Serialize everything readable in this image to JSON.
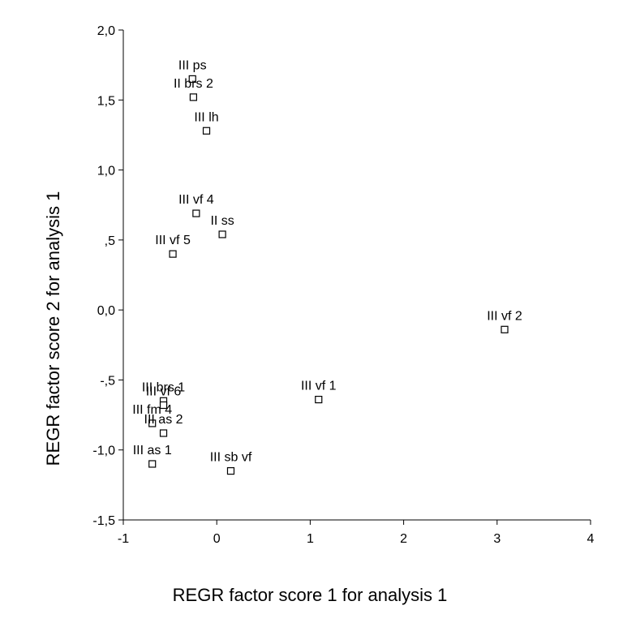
{
  "chart_data": {
    "type": "scatter",
    "title": "",
    "xlabel": "REGR factor score   1 for analysis    1",
    "ylabel": "REGR factor score   2 for analysis    1",
    "xlim": [
      -1,
      4
    ],
    "ylim": [
      -1.5,
      2.0
    ],
    "xticks": [
      -1,
      0,
      1,
      2,
      3,
      4
    ],
    "xtick_labels": [
      "-1",
      "0",
      "1",
      "2",
      "3",
      "4"
    ],
    "yticks": [
      -1.5,
      -1.0,
      -0.5,
      0.0,
      0.5,
      1.0,
      1.5,
      2.0
    ],
    "ytick_labels": [
      "-1,5",
      "-1,0",
      "-,5",
      "0,0",
      ",5",
      "1,0",
      "1,5",
      "2,0"
    ],
    "grid": false,
    "legend": "none",
    "marker": "open-square",
    "colors": {
      "marker": "#000000",
      "axis": "#000000",
      "text": "#000000"
    },
    "points": [
      {
        "label": "III ps",
        "x": -0.26,
        "y": 1.65
      },
      {
        "label": "II brs 2",
        "x": -0.25,
        "y": 1.52
      },
      {
        "label": "III lh",
        "x": -0.11,
        "y": 1.28
      },
      {
        "label": "III vf 4",
        "x": -0.22,
        "y": 0.69
      },
      {
        "label": "II ss",
        "x": 0.06,
        "y": 0.54
      },
      {
        "label": "III vf 5",
        "x": -0.47,
        "y": 0.4
      },
      {
        "label": "III vf 2",
        "x": 3.08,
        "y": -0.14
      },
      {
        "label": "III vf 1",
        "x": 1.09,
        "y": -0.64
      },
      {
        "label": "III brs 1",
        "x": -0.57,
        "y": -0.65
      },
      {
        "label": "III vf 6",
        "x": -0.57,
        "y": -0.68
      },
      {
        "label": "III fm 4",
        "x": -0.69,
        "y": -0.81
      },
      {
        "label": "III as 2",
        "x": -0.57,
        "y": -0.88
      },
      {
        "label": "III as 1",
        "x": -0.69,
        "y": -1.1
      },
      {
        "label": "III sb vf",
        "x": 0.15,
        "y": -1.15
      }
    ]
  }
}
